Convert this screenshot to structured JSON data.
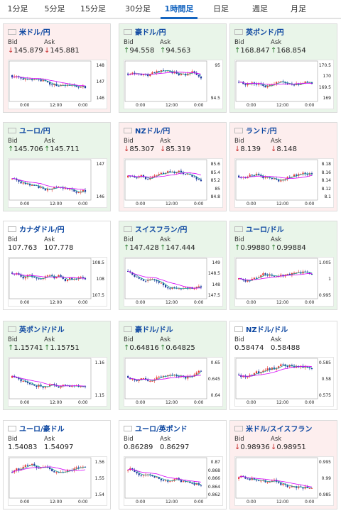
{
  "tabs": [
    {
      "id": "1m",
      "label": "1分足",
      "active": false
    },
    {
      "id": "5m",
      "label": "5分足",
      "active": false
    },
    {
      "id": "15m",
      "label": "15分足",
      "active": false
    },
    {
      "id": "30m",
      "label": "30分足",
      "active": false
    },
    {
      "id": "1h",
      "label": "1時間足",
      "active": true
    },
    {
      "id": "1d",
      "label": "日足",
      "active": false
    },
    {
      "id": "1w",
      "label": "週足",
      "active": false
    },
    {
      "id": "1mo",
      "label": "月足",
      "active": false
    }
  ],
  "labels": {
    "bid": "Bid",
    "ask": "Ask"
  },
  "arrows": {
    "up": "↑",
    "down": "↓"
  },
  "colors": {
    "up": "#2e7d32",
    "down": "#c62828",
    "pair_name": "#0d47a1",
    "tab_active": "#1565c0",
    "candle_up": "#e53935",
    "candle_down": "#1e3a9e",
    "ma_short": "#26a69a",
    "ma_long": "#d500f9"
  },
  "cards": [
    {
      "pair": "米ドル/円",
      "flag": "us-flag-icon",
      "tone": "red",
      "direction": "down",
      "bid": "145.879",
      "ask": "145.881",
      "y_ticks": [
        "148",
        "147",
        "146"
      ],
      "x_ticks": [
        "0:00",
        "12:00",
        "0:00"
      ]
    },
    {
      "pair": "豪ドル/円",
      "flag": "au-flag-icon",
      "tone": "green",
      "direction": "up",
      "bid": "94.558",
      "ask": "94.563",
      "y_ticks": [
        "95",
        "94.5"
      ],
      "x_ticks": [
        "0:00",
        "12:00",
        "0:00"
      ]
    },
    {
      "pair": "英ポンド/円",
      "flag": "gb-flag-icon",
      "tone": "green",
      "direction": "up",
      "bid": "168.847",
      "ask": "168.854",
      "y_ticks": [
        "170.5",
        "170",
        "169.5",
        "169"
      ],
      "x_ticks": [
        "0:00",
        "12:00",
        "0:00"
      ]
    },
    {
      "pair": "ユーロ/円",
      "flag": "eu-flag-icon",
      "tone": "green",
      "direction": "up",
      "bid": "145.706",
      "ask": "145.711",
      "y_ticks": [
        "147",
        "146"
      ],
      "x_ticks": [
        "0:00",
        "12:00",
        "0:00"
      ]
    },
    {
      "pair": "NZドル/円",
      "flag": "nz-flag-icon",
      "tone": "red",
      "direction": "down",
      "bid": "85.307",
      "ask": "85.319",
      "y_ticks": [
        "85.6",
        "85.4",
        "85.2",
        "85",
        "84.8"
      ],
      "x_ticks": [
        "0:00",
        "12:00",
        "0:00"
      ]
    },
    {
      "pair": "ランド/円",
      "flag": "za-flag-icon",
      "tone": "red",
      "direction": "down",
      "bid": "8.139",
      "ask": "8.148",
      "y_ticks": [
        "8.18",
        "8.16",
        "8.14",
        "8.12",
        "8.1"
      ],
      "x_ticks": [
        "0:00",
        "12:00",
        "0:00"
      ]
    },
    {
      "pair": "カナダドル/円",
      "flag": "ca-flag-icon",
      "tone": "white",
      "direction": "none",
      "bid": "107.763",
      "ask": "107.778",
      "y_ticks": [
        "108.5",
        "108",
        "107.5"
      ],
      "x_ticks": [
        "0:00",
        "12:00",
        "0:00"
      ]
    },
    {
      "pair": "スイスフラン/円",
      "flag": "ch-flag-icon",
      "tone": "green",
      "direction": "up",
      "bid": "147.428",
      "ask": "147.444",
      "y_ticks": [
        "149",
        "148.5",
        "148",
        "147.5"
      ],
      "x_ticks": [
        "0:00",
        "12:00",
        "0:00"
      ]
    },
    {
      "pair": "ユーロ/ドル",
      "flag": "eu-flag-icon",
      "tone": "green",
      "direction": "up",
      "bid": "0.99880",
      "ask": "0.99884",
      "y_ticks": [
        "1.005",
        "1",
        "0.995"
      ],
      "x_ticks": [
        "0:00",
        "12:00",
        "0:00"
      ]
    },
    {
      "pair": "英ポンド/ドル",
      "flag": "gb-flag-icon",
      "tone": "green",
      "direction": "up",
      "bid": "1.15741",
      "ask": "1.15751",
      "y_ticks": [
        "1.16",
        "1.15"
      ],
      "x_ticks": [
        "0:00",
        "12:00",
        "0:00"
      ]
    },
    {
      "pair": "豪ドル/ドル",
      "flag": "au-flag-icon",
      "tone": "green",
      "direction": "up",
      "bid": "0.64816",
      "ask": "0.64825",
      "y_ticks": [
        "0.65",
        "0.645",
        "0.64"
      ],
      "x_ticks": [
        "0:00",
        "12:00",
        "0:00"
      ]
    },
    {
      "pair": "NZドル/ドル",
      "flag": "nz-flag-icon",
      "tone": "white",
      "direction": "none",
      "bid": "0.58474",
      "ask": "0.58488",
      "y_ticks": [
        "0.585",
        "0.58",
        "0.575"
      ],
      "x_ticks": [
        "0:00",
        "12:00",
        "0:00"
      ]
    },
    {
      "pair": "ユーロ/豪ドル",
      "flag": "eu-flag-icon",
      "tone": "white",
      "direction": "none",
      "bid": "1.54083",
      "ask": "1.54097",
      "y_ticks": [
        "1.56",
        "1.55",
        "1.54"
      ],
      "x_ticks": [
        "0:00",
        "12:00",
        "0:00"
      ]
    },
    {
      "pair": "ユーロ/英ポンド",
      "flag": "eu-flag-icon",
      "tone": "white",
      "direction": "none",
      "bid": "0.86289",
      "ask": "0.86297",
      "y_ticks": [
        "0.87",
        "0.868",
        "0.866",
        "0.864",
        "0.862"
      ],
      "x_ticks": [
        "0:00",
        "12:00",
        "0:00"
      ]
    },
    {
      "pair": "米ドル/スイスフラン",
      "flag": "us-flag-icon",
      "tone": "red",
      "direction": "down",
      "bid": "0.98936",
      "ask": "0.98951",
      "y_ticks": [
        "0.995",
        "0.99",
        "0.985"
      ],
      "x_ticks": [
        "0:00",
        "12:00",
        "0:00"
      ]
    }
  ]
}
